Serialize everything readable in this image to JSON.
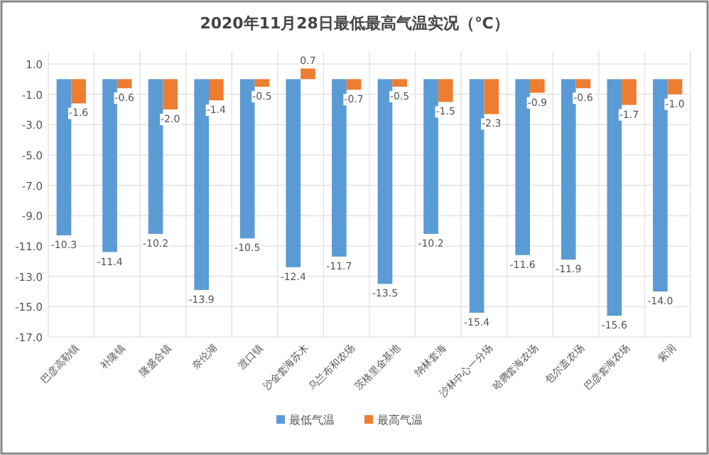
{
  "chart_data": {
    "type": "bar",
    "title": "2020年11月28日最低最高气温实况（℃）",
    "categories": [
      "巴彦高勒镇",
      "补隆镇",
      "隆盛合镇",
      "奈伦湖",
      "渡口镇",
      "沙金套海苏木",
      "乌兰布和农场",
      "茨格里金基地",
      "纳林套海",
      "沙林中心一分场",
      "哈腾套海农场",
      "包尔盖农场",
      "巴彦套海农场",
      "紫润"
    ],
    "series": [
      {
        "name": "最低气温",
        "color": "#5b9bd5",
        "values": [
          -10.3,
          -11.4,
          -10.2,
          -13.9,
          -10.5,
          -12.4,
          -11.7,
          -13.5,
          -10.2,
          -15.4,
          -11.6,
          -11.9,
          -15.6,
          -14.0
        ],
        "value_labels": [
          "-10.3",
          "-11.4",
          "-10.2",
          "-13.9",
          "-10.5",
          "-12.4",
          "-11.7",
          "-13.5",
          "-10.2",
          "-15.4",
          "-11.6",
          "-11.9",
          "-15.6",
          "-14.0"
        ]
      },
      {
        "name": "最高气温",
        "color": "#ed7d31",
        "values": [
          -1.6,
          -0.6,
          -2.0,
          -1.4,
          -0.5,
          0.7,
          -0.7,
          -0.5,
          -1.5,
          -2.3,
          -0.9,
          -0.6,
          -1.7,
          -1.0
        ],
        "value_labels": [
          "-1.6",
          "-0.6",
          "-2.0",
          "-1.4",
          "-0.5",
          "0.7",
          "-0.7",
          "-0.5",
          "-1.5",
          "-2.3",
          "-0.9",
          "-0.6",
          "-1.7",
          "-1.0"
        ]
      }
    ],
    "ylim": [
      -17,
      1
    ],
    "yticks": [
      {
        "value": 1,
        "label": "1.0"
      },
      {
        "value": -1,
        "label": "-1.0"
      },
      {
        "value": -3,
        "label": "-3.0"
      },
      {
        "value": -5,
        "label": "-5.0"
      },
      {
        "value": -7,
        "label": "-7.0"
      },
      {
        "value": -9,
        "label": "-9.0"
      },
      {
        "value": -11,
        "label": "-11.0"
      },
      {
        "value": -13,
        "label": "-13.0"
      },
      {
        "value": -15,
        "label": "-15.0"
      },
      {
        "value": -17,
        "label": "-17.0"
      }
    ],
    "grid": true,
    "legend": "bottom"
  }
}
